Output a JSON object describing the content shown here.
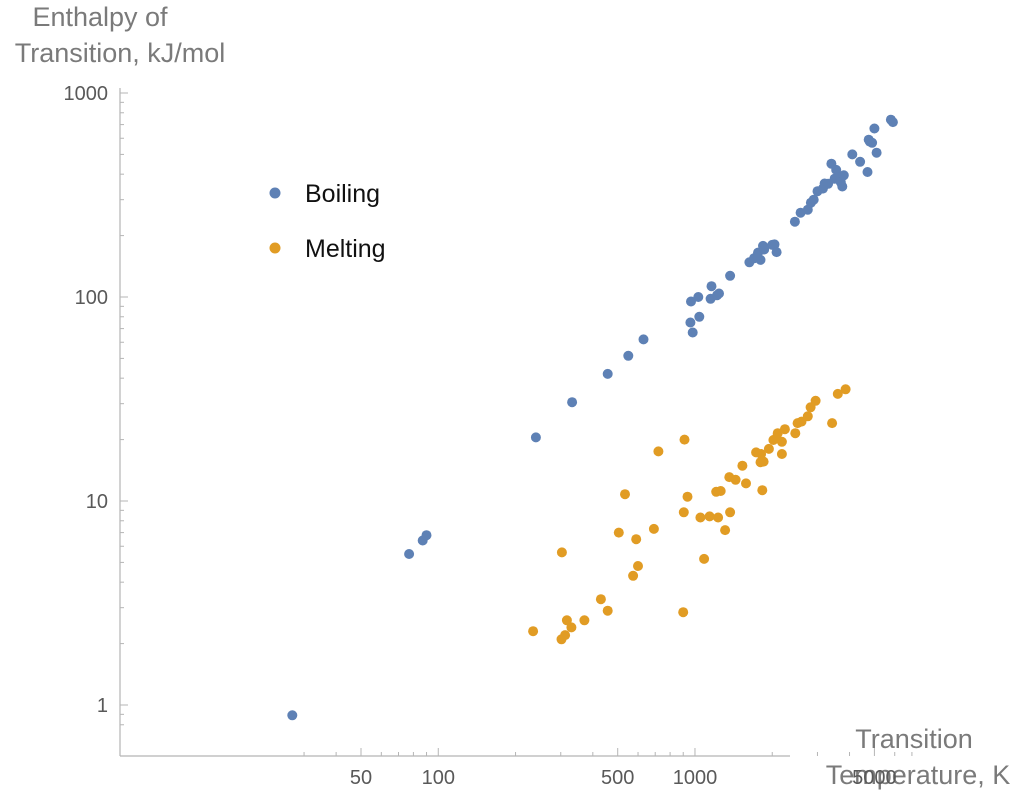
{
  "chart_data": {
    "type": "scatter",
    "title": "",
    "xlabel_lines": [
      "Transition",
      "Temperature, K"
    ],
    "ylabel_lines": [
      "Enthalpy of",
      "Transition, kJ/mol"
    ],
    "x_scale": "log",
    "y_scale": "log",
    "xlim": [
      25,
      7000
    ],
    "ylim": [
      0.76,
      1100
    ],
    "x_ticks": [
      50,
      100,
      500,
      1000,
      5000
    ],
    "x_tick_labels": [
      "50",
      "100",
      "500",
      "1000",
      "5000"
    ],
    "y_ticks": [
      1,
      10,
      100,
      1000
    ],
    "y_tick_labels": [
      "1",
      "10",
      "100",
      "1000"
    ],
    "grid": false,
    "legend_position": "top-left",
    "series": [
      {
        "name": "Boiling",
        "color": "#5e81b5",
        "points": [
          [
            27,
            0.89
          ],
          [
            77,
            5.5
          ],
          [
            87,
            6.4
          ],
          [
            90,
            6.8
          ],
          [
            240,
            20.5
          ],
          [
            332,
            30.5
          ],
          [
            457,
            42
          ],
          [
            550,
            51.5
          ],
          [
            630,
            62
          ],
          [
            960,
            75
          ],
          [
            965,
            95
          ],
          [
            980,
            67
          ],
          [
            1030,
            100
          ],
          [
            1040,
            80
          ],
          [
            1150,
            98
          ],
          [
            1160,
            113
          ],
          [
            1220,
            102
          ],
          [
            1240,
            104
          ],
          [
            1370,
            127
          ],
          [
            1630,
            148
          ],
          [
            1700,
            155
          ],
          [
            1760,
            165
          ],
          [
            1800,
            152
          ],
          [
            1840,
            178
          ],
          [
            1860,
            171
          ],
          [
            2000,
            180
          ],
          [
            2040,
            181
          ],
          [
            2080,
            166
          ],
          [
            2450,
            234
          ],
          [
            2580,
            259
          ],
          [
            2750,
            268
          ],
          [
            2830,
            290
          ],
          [
            2900,
            300
          ],
          [
            3000,
            330
          ],
          [
            3150,
            340
          ],
          [
            3200,
            360
          ],
          [
            3300,
            359
          ],
          [
            3400,
            450
          ],
          [
            3500,
            380
          ],
          [
            3550,
            420
          ],
          [
            3680,
            385
          ],
          [
            3700,
            365
          ],
          [
            3750,
            348
          ],
          [
            3800,
            395
          ],
          [
            4100,
            500
          ],
          [
            4400,
            460
          ],
          [
            4700,
            410
          ],
          [
            4750,
            590
          ],
          [
            4800,
            578
          ],
          [
            4900,
            570
          ],
          [
            5000,
            670
          ],
          [
            5100,
            510
          ],
          [
            5800,
            740
          ],
          [
            5900,
            720
          ]
        ]
      },
      {
        "name": "Melting",
        "color": "#e19c24",
        "points": [
          [
            234,
            2.3
          ],
          [
            302,
            2.1
          ],
          [
            303,
            5.6
          ],
          [
            312,
            2.2
          ],
          [
            317,
            2.6
          ],
          [
            330,
            2.4
          ],
          [
            371,
            2.6
          ],
          [
            430,
            3.3
          ],
          [
            457,
            2.9
          ],
          [
            505,
            7.0
          ],
          [
            534,
            10.8
          ],
          [
            574,
            4.3
          ],
          [
            590,
            6.5
          ],
          [
            600,
            4.8
          ],
          [
            692,
            7.3
          ],
          [
            720,
            17.5
          ],
          [
            900,
            2.85
          ],
          [
            905,
            8.8
          ],
          [
            910,
            20.0
          ],
          [
            935,
            10.5
          ],
          [
            1050,
            8.3
          ],
          [
            1085,
            5.2
          ],
          [
            1140,
            8.4
          ],
          [
            1210,
            11.1
          ],
          [
            1230,
            8.3
          ],
          [
            1260,
            11.2
          ],
          [
            1310,
            7.2
          ],
          [
            1360,
            13.1
          ],
          [
            1370,
            8.8
          ],
          [
            1440,
            12.7
          ],
          [
            1530,
            14.9
          ],
          [
            1580,
            12.2
          ],
          [
            1730,
            17.3
          ],
          [
            1800,
            15.5
          ],
          [
            1810,
            17.0
          ],
          [
            1830,
            11.3
          ],
          [
            1850,
            15.6
          ],
          [
            1940,
            18.0
          ],
          [
            2020,
            19.9
          ],
          [
            2080,
            20.4
          ],
          [
            2100,
            21.5
          ],
          [
            2180,
            17.0
          ],
          [
            2180,
            19.5
          ],
          [
            2240,
            22.5
          ],
          [
            2460,
            21.5
          ],
          [
            2510,
            24.1
          ],
          [
            2600,
            24.5
          ],
          [
            2750,
            26.0
          ],
          [
            2820,
            28.8
          ],
          [
            2950,
            31.0
          ],
          [
            3420,
            24.1
          ],
          [
            3600,
            33.5
          ],
          [
            3860,
            35.3
          ]
        ]
      }
    ]
  }
}
